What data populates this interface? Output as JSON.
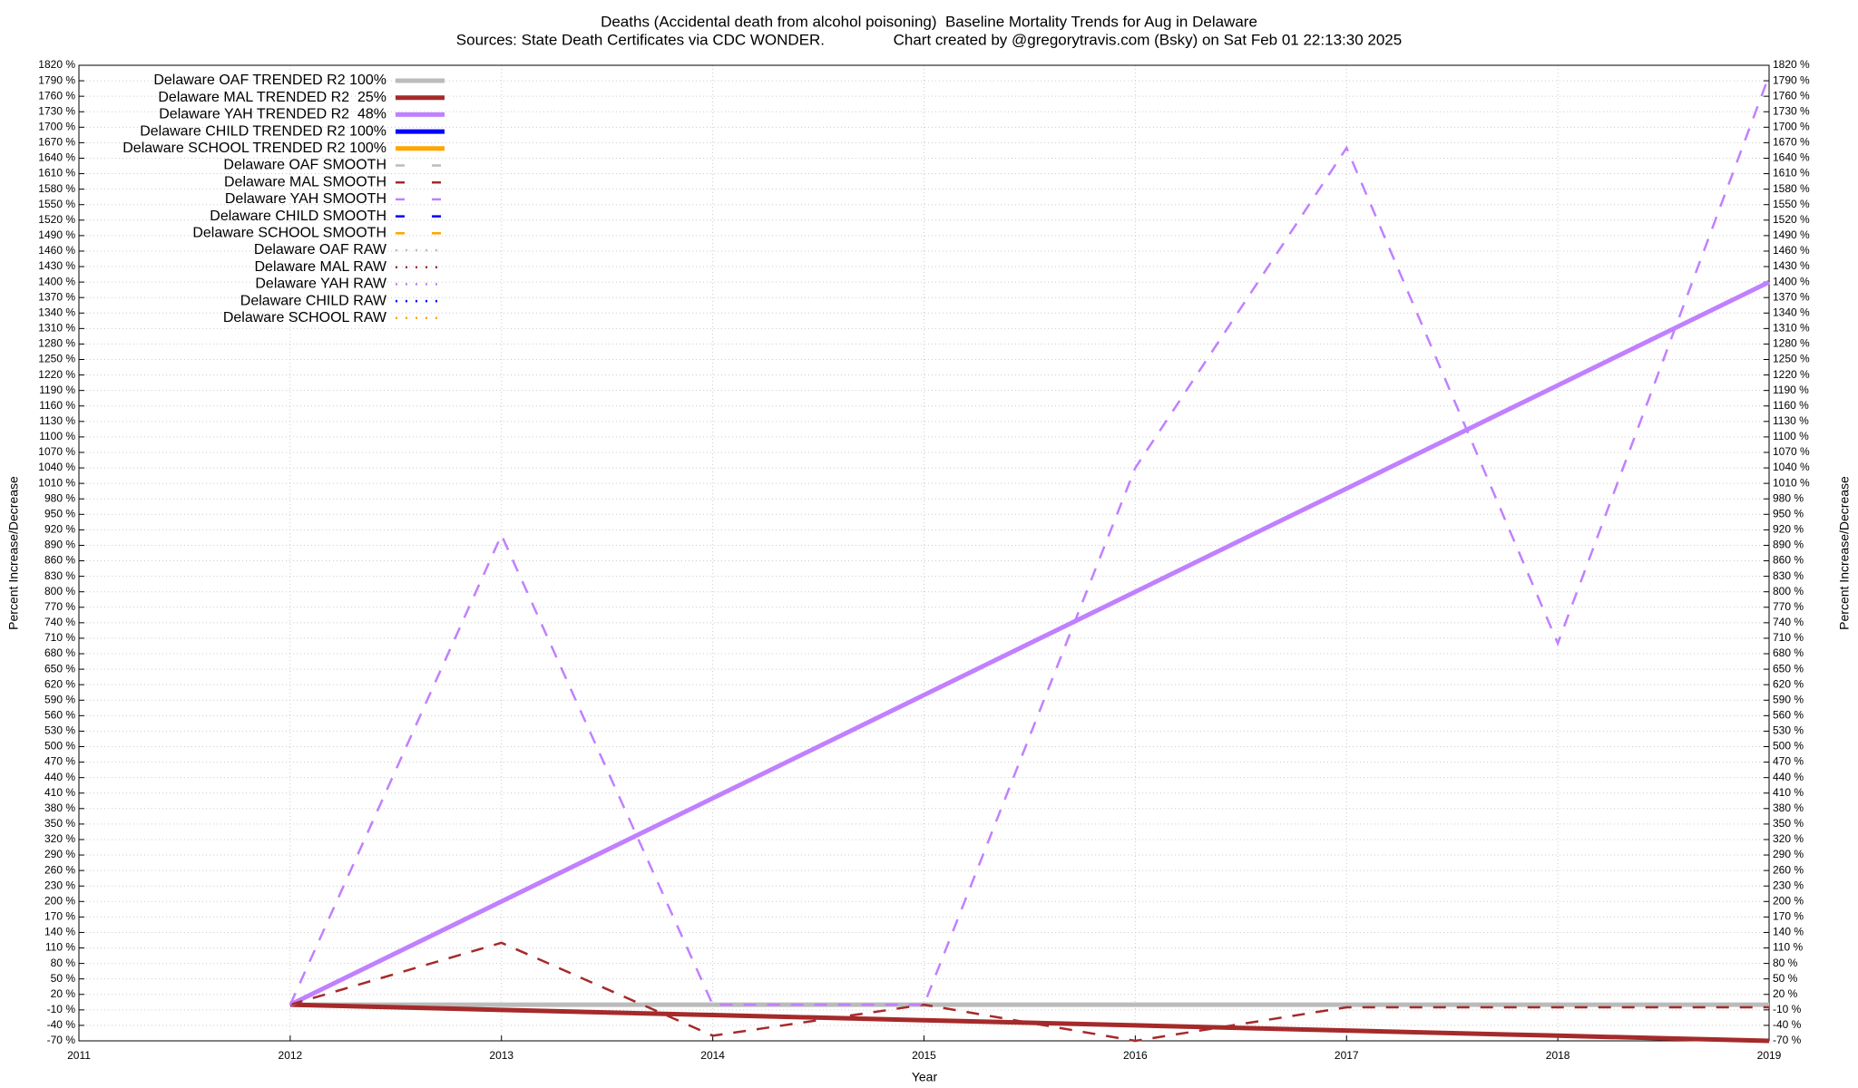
{
  "chart_data": {
    "type": "line",
    "title": "Deaths (Accidental death from alcohol poisoning)  Baseline Mortality Trends for Aug in Delaware",
    "subtitle": "Sources: State Death Certificates via CDC WONDER.                Chart created by @gregorytravis.com (Bsky) on Sat Feb 01 22:13:30 2025",
    "x_label": "Year",
    "y_label": "Percent Increase/Decrease",
    "y2_label": "Percent Increase/Decrease",
    "x": [
      2012,
      2013,
      2014,
      2015,
      2016,
      2017,
      2018,
      2019
    ],
    "xlim": [
      2011,
      2019
    ],
    "xticks": [
      2011,
      2012,
      2013,
      2014,
      2015,
      2016,
      2017,
      2018,
      2019
    ],
    "ylim": [
      -70,
      1820
    ],
    "yticks": [
      {
        "value": -70,
        "label": "-70 %"
      },
      {
        "value": -40,
        "label": "-40 %"
      },
      {
        "value": -10,
        "label": "-10 %"
      },
      {
        "value": 20,
        "label": "20 %"
      },
      {
        "value": 50,
        "label": "50 %"
      },
      {
        "value": 80,
        "label": "80 %"
      },
      {
        "value": 110,
        "label": "110 %"
      },
      {
        "value": 140,
        "label": "140 %"
      },
      {
        "value": 170,
        "label": "170 %"
      },
      {
        "value": 200,
        "label": "200 %"
      },
      {
        "value": 230,
        "label": "230 %"
      },
      {
        "value": 260,
        "label": "260 %"
      },
      {
        "value": 290,
        "label": "290 %"
      },
      {
        "value": 320,
        "label": "320 %"
      },
      {
        "value": 350,
        "label": "350 %"
      },
      {
        "value": 380,
        "label": "380 %"
      },
      {
        "value": 410,
        "label": "410 %"
      },
      {
        "value": 440,
        "label": "440 %"
      },
      {
        "value": 470,
        "label": "470 %"
      },
      {
        "value": 500,
        "label": "500 %"
      },
      {
        "value": 530,
        "label": "530 %"
      },
      {
        "value": 560,
        "label": "560 %"
      },
      {
        "value": 590,
        "label": "590 %"
      },
      {
        "value": 620,
        "label": "620 %"
      },
      {
        "value": 650,
        "label": "650 %"
      },
      {
        "value": 680,
        "label": "680 %"
      },
      {
        "value": 710,
        "label": "710 %"
      },
      {
        "value": 740,
        "label": "740 %"
      },
      {
        "value": 770,
        "label": "770 %"
      },
      {
        "value": 800,
        "label": "800 %"
      },
      {
        "value": 830,
        "label": "830 %"
      },
      {
        "value": 860,
        "label": "860 %"
      },
      {
        "value": 890,
        "label": "890 %"
      },
      {
        "value": 920,
        "label": "920 %"
      },
      {
        "value": 950,
        "label": "950 %"
      },
      {
        "value": 980,
        "label": "980 %"
      },
      {
        "value": 1010,
        "label": "1010 %"
      },
      {
        "value": 1040,
        "label": "1040 %"
      },
      {
        "value": 1070,
        "label": "1070 %"
      },
      {
        "value": 1100,
        "label": "1100 %"
      },
      {
        "value": 1130,
        "label": "1130 %"
      },
      {
        "value": 1160,
        "label": "1160 %"
      },
      {
        "value": 1190,
        "label": "1190 %"
      },
      {
        "value": 1220,
        "label": "1220 %"
      },
      {
        "value": 1250,
        "label": "1250 %"
      },
      {
        "value": 1280,
        "label": "1280 %"
      },
      {
        "value": 1310,
        "label": "1310 %"
      },
      {
        "value": 1340,
        "label": "1340 %"
      },
      {
        "value": 1370,
        "label": "1370 %"
      },
      {
        "value": 1400,
        "label": "1400 %"
      },
      {
        "value": 1430,
        "label": "1430 %"
      },
      {
        "value": 1460,
        "label": "1460 %"
      },
      {
        "value": 1490,
        "label": "1490 %"
      },
      {
        "value": 1520,
        "label": "1520 %"
      },
      {
        "value": 1550,
        "label": "1550 %"
      },
      {
        "value": 1580,
        "label": "1580 %"
      },
      {
        "value": 1610,
        "label": "1610 %"
      },
      {
        "value": 1640,
        "label": "1640 %"
      },
      {
        "value": 1670,
        "label": "1670 %"
      },
      {
        "value": 1700,
        "label": "1700 %"
      },
      {
        "value": 1730,
        "label": "1730 %"
      },
      {
        "value": 1760,
        "label": "1760 %"
      },
      {
        "value": 1790,
        "label": "1790 %"
      },
      {
        "value": 1820,
        "label": "1820 %"
      }
    ],
    "grid": true,
    "legend": "top-left",
    "series": [
      {
        "name": "Delaware OAF TRENDED R2 100%",
        "color": "#bbbbbb",
        "style": "solid",
        "values": [
          0,
          0,
          0,
          0,
          0,
          0,
          0,
          0
        ]
      },
      {
        "name": "Delaware MAL TRENDED R2  25%",
        "color": "#a52a2a",
        "style": "solid",
        "values": [
          0,
          -10,
          -20,
          -30,
          -40,
          -50,
          -60,
          -70
        ]
      },
      {
        "name": "Delaware YAH TRENDED R2  48%",
        "color": "#c080ff",
        "style": "solid",
        "values": [
          0,
          200,
          400,
          600,
          800,
          1000,
          1200,
          1400
        ]
      },
      {
        "name": "Delaware CHILD TRENDED R2 100%",
        "color": "#0000ff",
        "style": "solid",
        "values": [
          null,
          null,
          null,
          null,
          null,
          null,
          null,
          null
        ]
      },
      {
        "name": "Delaware SCHOOL TRENDED R2 100%",
        "color": "#ffa500",
        "style": "solid",
        "values": [
          null,
          null,
          null,
          null,
          null,
          null,
          null,
          null
        ]
      },
      {
        "name": "Delaware OAF SMOOTH",
        "color": "#bbbbbb",
        "style": "dashed",
        "values": [
          null,
          null,
          null,
          null,
          null,
          null,
          null,
          null
        ]
      },
      {
        "name": "Delaware MAL SMOOTH",
        "color": "#a52a2a",
        "style": "dashed",
        "values": [
          0,
          120,
          -60,
          0,
          -70,
          -5,
          -5,
          -5
        ]
      },
      {
        "name": "Delaware YAH SMOOTH",
        "color": "#c080ff",
        "style": "dashed",
        "values": [
          0,
          910,
          0,
          0,
          1040,
          1660,
          700,
          1800
        ]
      },
      {
        "name": "Delaware CHILD SMOOTH",
        "color": "#0000ff",
        "style": "dashed",
        "values": [
          null,
          null,
          null,
          null,
          null,
          null,
          null,
          null
        ]
      },
      {
        "name": "Delaware SCHOOL SMOOTH",
        "color": "#ffa500",
        "style": "dashed",
        "values": [
          null,
          null,
          null,
          null,
          null,
          null,
          null,
          null
        ]
      },
      {
        "name": "Delaware OAF RAW",
        "color": "#bbbbbb",
        "style": "dotted",
        "values": [
          null,
          null,
          null,
          null,
          null,
          null,
          null,
          null
        ]
      },
      {
        "name": "Delaware MAL RAW",
        "color": "#a52a2a",
        "style": "dotted",
        "values": [
          null,
          null,
          null,
          null,
          null,
          null,
          null,
          null
        ]
      },
      {
        "name": "Delaware YAH RAW",
        "color": "#c080ff",
        "style": "dotted",
        "values": [
          null,
          null,
          null,
          null,
          null,
          null,
          null,
          null
        ]
      },
      {
        "name": "Delaware CHILD RAW",
        "color": "#0000ff",
        "style": "dotted",
        "values": [
          null,
          null,
          null,
          null,
          null,
          null,
          null,
          null
        ]
      },
      {
        "name": "Delaware SCHOOL RAW",
        "color": "#ffa500",
        "style": "dotted",
        "values": [
          null,
          null,
          null,
          null,
          null,
          null,
          null,
          null
        ]
      }
    ]
  }
}
